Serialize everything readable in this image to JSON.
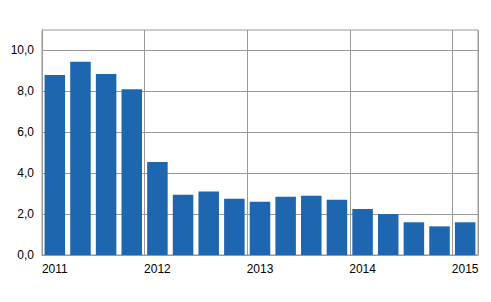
{
  "chart_data": {
    "type": "bar",
    "categories": [
      "2011",
      null,
      null,
      null,
      "2012",
      null,
      null,
      null,
      "2013",
      null,
      null,
      null,
      "2014",
      null,
      null,
      null,
      "2015"
    ],
    "values": [
      8.8,
      9.45,
      8.85,
      8.1,
      4.55,
      2.95,
      3.1,
      2.75,
      2.6,
      2.85,
      2.9,
      2.7,
      2.25,
      2.0,
      1.6,
      1.4,
      1.6
    ],
    "color": "#1f66b0",
    "ylim": [
      0,
      11
    ],
    "yticks": [
      {
        "value": 0,
        "label": "0,0"
      },
      {
        "value": 2,
        "label": "2,0"
      },
      {
        "value": 4,
        "label": "4,0"
      },
      {
        "value": 6,
        "label": "6,0"
      },
      {
        "value": 8,
        "label": "8,0"
      },
      {
        "value": 10,
        "label": "10,0"
      }
    ],
    "grid": true
  }
}
